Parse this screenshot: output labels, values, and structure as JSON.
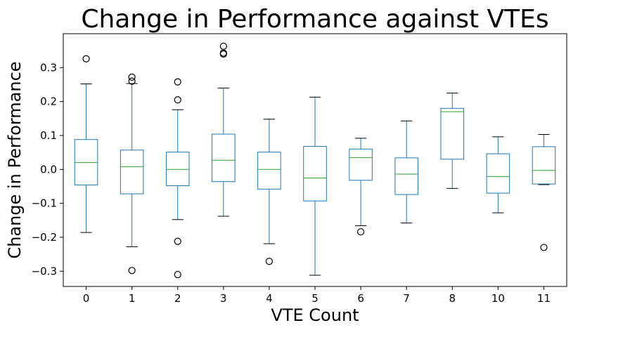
{
  "chart_data": {
    "type": "boxplot",
    "title": "Change in Performance against VTEs",
    "xlabel": "VTE Count",
    "ylabel": "Change in Performance",
    "ylim": [
      -0.345,
      0.4
    ],
    "yticks": [
      -0.3,
      -0.2,
      -0.1,
      0.0,
      0.1,
      0.2,
      0.3
    ],
    "ytick_labels": [
      "−0.3",
      "−0.2",
      "−0.1",
      "0.0",
      "0.1",
      "0.2",
      "0.3"
    ],
    "grid": false,
    "legend": "none",
    "colors": {
      "box": "#1f77b4",
      "median": "#2ca02c",
      "whisker_cap": "#000000",
      "outlier": "#000000"
    },
    "categories": [
      "0",
      "1",
      "2",
      "3",
      "4",
      "5",
      "6",
      "7",
      "8",
      "10",
      "11"
    ],
    "boxes": [
      {
        "q1": -0.046,
        "median": 0.02,
        "q3": 0.088,
        "whisker_low": -0.186,
        "whisker_high": 0.252,
        "outliers": [
          0.326
        ]
      },
      {
        "q1": -0.072,
        "median": 0.008,
        "q3": 0.057,
        "whisker_low": -0.228,
        "whisker_high": 0.253,
        "outliers": [
          0.272,
          0.26,
          -0.298
        ]
      },
      {
        "q1": -0.048,
        "median": 0.0,
        "q3": 0.051,
        "whisker_low": -0.148,
        "whisker_high": 0.176,
        "outliers": [
          0.258,
          0.205,
          -0.212,
          -0.31
        ]
      },
      {
        "q1": -0.036,
        "median": 0.027,
        "q3": 0.104,
        "whisker_low": -0.138,
        "whisker_high": 0.24,
        "outliers": [
          0.363,
          0.343,
          0.34
        ]
      },
      {
        "q1": -0.058,
        "median": 0.0,
        "q3": 0.051,
        "whisker_low": -0.219,
        "whisker_high": 0.148,
        "outliers": [
          -0.271
        ]
      },
      {
        "q1": -0.093,
        "median": -0.025,
        "q3": 0.068,
        "whisker_low": -0.312,
        "whisker_high": 0.213,
        "outliers": []
      },
      {
        "q1": -0.032,
        "median": 0.035,
        "q3": 0.06,
        "whisker_low": -0.166,
        "whisker_high": 0.092,
        "outliers": [
          -0.184
        ]
      },
      {
        "q1": -0.074,
        "median": -0.014,
        "q3": 0.034,
        "whisker_low": -0.158,
        "whisker_high": 0.143,
        "outliers": []
      },
      {
        "q1": 0.03,
        "median": 0.17,
        "q3": 0.18,
        "whisker_low": -0.056,
        "whisker_high": 0.225,
        "outliers": []
      },
      {
        "q1": -0.07,
        "median": -0.021,
        "q3": 0.046,
        "whisker_low": -0.128,
        "whisker_high": 0.096,
        "outliers": []
      },
      {
        "q1": -0.043,
        "median": -0.003,
        "q3": 0.067,
        "whisker_low": -0.045,
        "whisker_high": 0.103,
        "outliers": [
          -0.23
        ]
      }
    ]
  }
}
